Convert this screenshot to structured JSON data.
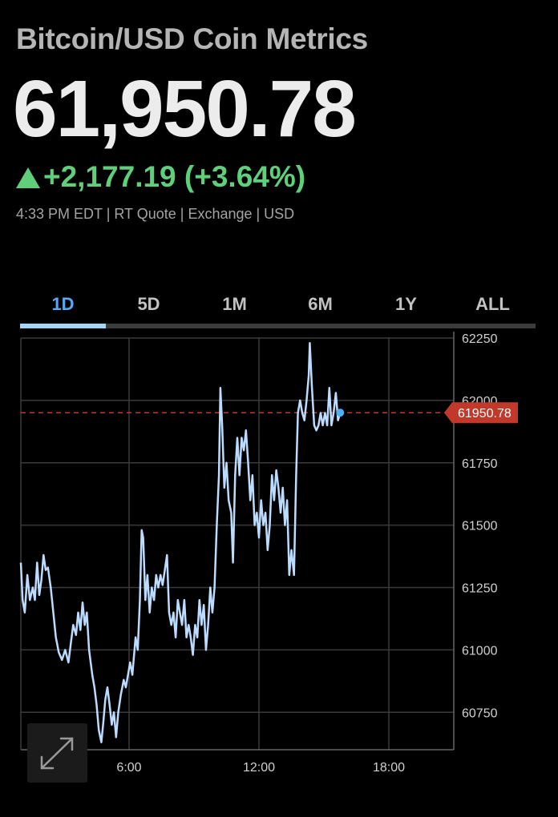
{
  "header": {
    "title": "Bitcoin/USD Coin Metrics",
    "price": "61,950.78",
    "change": "+2,177.19 (+3.64%)",
    "change_direction_icon": "triangle-up-icon",
    "meta": "4:33 PM EDT | RT Quote | Exchange | USD"
  },
  "tabs": [
    {
      "label": "1D",
      "active": true
    },
    {
      "label": "5D",
      "active": false
    },
    {
      "label": "1M",
      "active": false
    },
    {
      "label": "6M",
      "active": false
    },
    {
      "label": "1Y",
      "active": false
    },
    {
      "label": "ALL",
      "active": false
    }
  ],
  "colors": {
    "up": "#5fcf7c",
    "accent": "#5aa9f0",
    "line": "#bcdcff",
    "price_tag": "#c0392b"
  },
  "expand_button_icon": "expand-arrows-icon",
  "chart_data": {
    "type": "line",
    "ylim": [
      60600,
      62250
    ],
    "xlim": [
      1.0,
      21.0
    ],
    "y_ticks": [
      62250,
      62000,
      61750,
      61500,
      61250,
      61000,
      60750
    ],
    "y_tick_labels": [
      "62250",
      "62000",
      "61750",
      "61500",
      "61250",
      "61000",
      "60750"
    ],
    "x_ticks": [
      6,
      12,
      18
    ],
    "x_tick_labels": [
      "6:00",
      "12:00",
      "18:00"
    ],
    "last_price": 61950.78,
    "last_price_label": "61950.78",
    "grid": true,
    "series": [
      {
        "values": [
          [
            1.0,
            61350
          ],
          [
            1.08,
            61200
          ],
          [
            1.18,
            61150
          ],
          [
            1.3,
            61300
          ],
          [
            1.42,
            61200
          ],
          [
            1.55,
            61250
          ],
          [
            1.65,
            61200
          ],
          [
            1.75,
            61350
          ],
          [
            1.85,
            61220
          ],
          [
            1.95,
            61280
          ],
          [
            2.05,
            61380
          ],
          [
            2.15,
            61320
          ],
          [
            2.25,
            61330
          ],
          [
            2.38,
            61250
          ],
          [
            2.5,
            61150
          ],
          [
            2.62,
            61050
          ],
          [
            2.75,
            60990
          ],
          [
            2.9,
            60960
          ],
          [
            3.05,
            61000
          ],
          [
            3.2,
            60950
          ],
          [
            3.3,
            61020
          ],
          [
            3.42,
            61100
          ],
          [
            3.55,
            61060
          ],
          [
            3.65,
            61150
          ],
          [
            3.75,
            61080
          ],
          [
            3.85,
            61190
          ],
          [
            3.95,
            61100
          ],
          [
            4.05,
            61150
          ],
          [
            4.15,
            61000
          ],
          [
            4.3,
            60900
          ],
          [
            4.4,
            60850
          ],
          [
            4.5,
            60780
          ],
          [
            4.6,
            60680
          ],
          [
            4.72,
            60630
          ],
          [
            4.8,
            60700
          ],
          [
            4.9,
            60800
          ],
          [
            5.0,
            60850
          ],
          [
            5.1,
            60780
          ],
          [
            5.2,
            60700
          ],
          [
            5.3,
            60750
          ],
          [
            5.4,
            60650
          ],
          [
            5.5,
            60750
          ],
          [
            5.62,
            60820
          ],
          [
            5.75,
            60880
          ],
          [
            5.85,
            60850
          ],
          [
            5.95,
            60900
          ],
          [
            6.05,
            60950
          ],
          [
            6.15,
            60900
          ],
          [
            6.3,
            61050
          ],
          [
            6.4,
            61000
          ],
          [
            6.5,
            61200
          ],
          [
            6.58,
            61480
          ],
          [
            6.65,
            61450
          ],
          [
            6.75,
            61200
          ],
          [
            6.85,
            61300
          ],
          [
            6.95,
            61150
          ],
          [
            7.05,
            61250
          ],
          [
            7.15,
            61200
          ],
          [
            7.25,
            61300
          ],
          [
            7.35,
            61250
          ],
          [
            7.45,
            61300
          ],
          [
            7.55,
            61260
          ],
          [
            7.65,
            61320
          ],
          [
            7.75,
            61380
          ],
          [
            7.85,
            61150
          ],
          [
            7.95,
            61100
          ],
          [
            8.05,
            61150
          ],
          [
            8.15,
            61050
          ],
          [
            8.25,
            61200
          ],
          [
            8.35,
            61150
          ],
          [
            8.45,
            61100
          ],
          [
            8.55,
            61200
          ],
          [
            8.65,
            61050
          ],
          [
            8.75,
            61100
          ],
          [
            8.85,
            61050
          ],
          [
            8.95,
            60980
          ],
          [
            9.05,
            61100
          ],
          [
            9.15,
            61050
          ],
          [
            9.25,
            61200
          ],
          [
            9.35,
            61100
          ],
          [
            9.45,
            61180
          ],
          [
            9.55,
            61000
          ],
          [
            9.65,
            61100
          ],
          [
            9.75,
            61250
          ],
          [
            9.85,
            61150
          ],
          [
            9.95,
            61250
          ],
          [
            10.05,
            61500
          ],
          [
            10.15,
            61700
          ],
          [
            10.22,
            62050
          ],
          [
            10.3,
            61900
          ],
          [
            10.4,
            61650
          ],
          [
            10.5,
            61750
          ],
          [
            10.6,
            61600
          ],
          [
            10.72,
            61550
          ],
          [
            10.8,
            61350
          ],
          [
            10.9,
            61700
          ],
          [
            11.0,
            61850
          ],
          [
            11.1,
            61700
          ],
          [
            11.2,
            61850
          ],
          [
            11.3,
            61800
          ],
          [
            11.4,
            61880
          ],
          [
            11.5,
            61750
          ],
          [
            11.6,
            61600
          ],
          [
            11.7,
            61700
          ],
          [
            11.8,
            61500
          ],
          [
            11.9,
            61550
          ],
          [
            12.0,
            61450
          ],
          [
            12.1,
            61600
          ],
          [
            12.2,
            61500
          ],
          [
            12.3,
            61550
          ],
          [
            12.4,
            61400
          ],
          [
            12.5,
            61500
          ],
          [
            12.6,
            61700
          ],
          [
            12.7,
            61600
          ],
          [
            12.8,
            61720
          ],
          [
            12.9,
            61650
          ],
          [
            13.0,
            61550
          ],
          [
            13.1,
            61650
          ],
          [
            13.2,
            61500
          ],
          [
            13.3,
            61600
          ],
          [
            13.4,
            61300
          ],
          [
            13.5,
            61400
          ],
          [
            13.62,
            61300
          ],
          [
            13.72,
            61700
          ],
          [
            13.8,
            61950
          ],
          [
            13.9,
            62000
          ],
          [
            14.0,
            61950
          ],
          [
            14.1,
            61920
          ],
          [
            14.2,
            62000
          ],
          [
            14.3,
            62100
          ],
          [
            14.35,
            62230
          ],
          [
            14.45,
            62050
          ],
          [
            14.55,
            61900
          ],
          [
            14.65,
            61880
          ],
          [
            14.75,
            61900
          ],
          [
            14.85,
            61950
          ],
          [
            14.95,
            61900
          ],
          [
            15.05,
            61950
          ],
          [
            15.15,
            61900
          ],
          [
            15.25,
            62050
          ],
          [
            15.35,
            61900
          ],
          [
            15.45,
            61950
          ],
          [
            15.55,
            62030
          ],
          [
            15.65,
            61920
          ],
          [
            15.75,
            61950
          ]
        ]
      }
    ]
  }
}
